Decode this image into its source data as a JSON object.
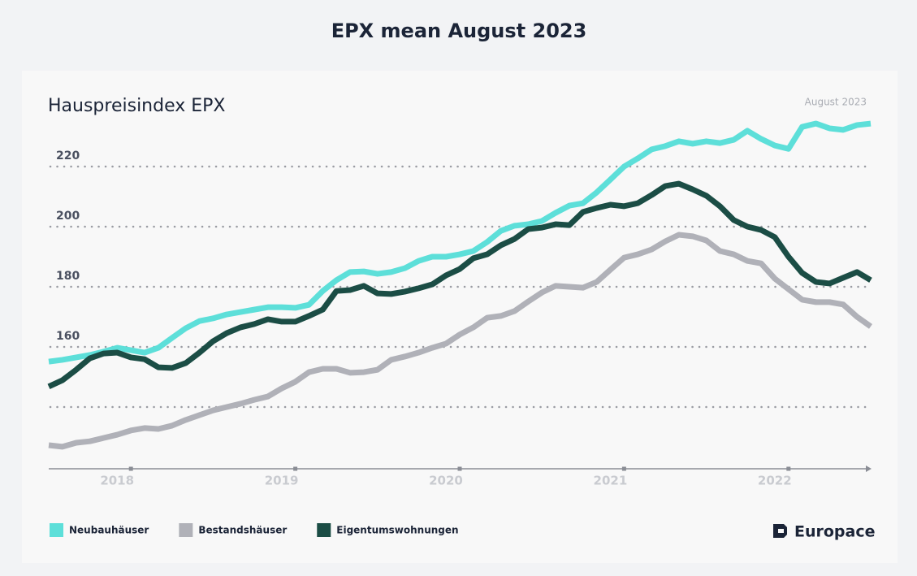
{
  "page_title": "EPX mean August 2023",
  "chart_data": {
    "type": "line",
    "title": "Hauspreisindex EPX",
    "subtitle": "August 2023",
    "logo": "Europace",
    "x": [
      2017.5,
      2017.583,
      2017.667,
      2017.75,
      2017.833,
      2017.917,
      2018,
      2018.083,
      2018.167,
      2018.25,
      2018.333,
      2018.417,
      2018.5,
      2018.583,
      2018.667,
      2018.75,
      2018.833,
      2018.917,
      2019,
      2019.083,
      2019.167,
      2019.25,
      2019.333,
      2019.417,
      2019.5,
      2019.583,
      2019.667,
      2019.75,
      2019.833,
      2019.917,
      2020,
      2020.083,
      2020.167,
      2020.25,
      2020.333,
      2020.417,
      2020.5,
      2020.583,
      2020.667,
      2020.75,
      2020.833,
      2020.917,
      2021,
      2021.083,
      2021.167,
      2021.25,
      2021.333,
      2021.417,
      2021.5,
      2021.583,
      2021.667,
      2021.75,
      2021.833,
      2021.917,
      2022,
      2022.083,
      2022.167,
      2022.25,
      2022.333,
      2022.417,
      2022.5
    ],
    "series": [
      {
        "name": "Neubauhäuser",
        "color": "#5ddfd9",
        "values": [
          155.1,
          155.7,
          156.5,
          157.3,
          158.4,
          159.7,
          158.9,
          158.1,
          159.7,
          163,
          166.2,
          168.6,
          169.5,
          170.8,
          171.6,
          172.4,
          173.2,
          173.2,
          173,
          174,
          178.6,
          182.2,
          184.9,
          185.1,
          184.3,
          184.9,
          186.2,
          188.6,
          190,
          190,
          190.8,
          191.9,
          194.9,
          198.6,
          200.3,
          200.8,
          201.9,
          204.6,
          207,
          207.8,
          211.4,
          215.7,
          220,
          222.7,
          225.7,
          226.8,
          228.4,
          227.6,
          228.4,
          227.8,
          228.9,
          231.9,
          229.2,
          227,
          225.9,
          233.2,
          234.3,
          232.7,
          232.2,
          233.8,
          234.3
        ]
      },
      {
        "name": "Bestandshäuser",
        "color": "#b0b1b8",
        "values": [
          127.3,
          126.8,
          128.1,
          128.6,
          129.7,
          130.8,
          132.2,
          133,
          132.7,
          133.8,
          135.7,
          137.3,
          138.9,
          140,
          141.1,
          142.4,
          143.5,
          146.2,
          148.4,
          151.6,
          152.7,
          152.7,
          151.4,
          151.6,
          152.4,
          155.7,
          156.8,
          158.1,
          159.7,
          161.1,
          164.1,
          166.5,
          169.7,
          170.3,
          171.9,
          175.1,
          178.1,
          180.3,
          180,
          179.7,
          181.6,
          185.7,
          189.7,
          190.8,
          192.4,
          195.1,
          197.3,
          196.8,
          195.4,
          191.9,
          190.8,
          188.6,
          187.8,
          182.7,
          179.2,
          175.7,
          174.9,
          174.9,
          174.1,
          170,
          166.8
        ]
      },
      {
        "name": "Eigentumswohnungen",
        "color": "#1b4d45",
        "values": [
          146.8,
          148.9,
          152.4,
          156.2,
          157.8,
          158.1,
          156.5,
          155.9,
          153.2,
          153,
          154.6,
          158.1,
          161.9,
          164.6,
          166.5,
          167.6,
          169.2,
          168.4,
          168.4,
          170.3,
          172.4,
          178.6,
          178.9,
          180.3,
          177.8,
          177.6,
          178.4,
          179.5,
          180.8,
          183.8,
          185.9,
          189.5,
          190.8,
          193.8,
          195.9,
          199.2,
          199.7,
          200.8,
          200.5,
          204.9,
          206.2,
          207.3,
          206.8,
          207.8,
          210.5,
          213.5,
          214.3,
          212.4,
          210.3,
          206.8,
          202.2,
          200,
          198.9,
          196.5,
          190,
          184.6,
          181.6,
          181.1,
          183,
          184.9,
          182.2
        ]
      }
    ],
    "xlim": [
      2017.5,
      2022.5
    ],
    "xticks": [
      2018,
      2019,
      2020,
      2021,
      2022
    ],
    "ylim": [
      120,
      240
    ],
    "yticks": [
      {
        "value": 140,
        "label": null
      },
      160,
      180,
      200,
      220
    ],
    "grid": true
  }
}
